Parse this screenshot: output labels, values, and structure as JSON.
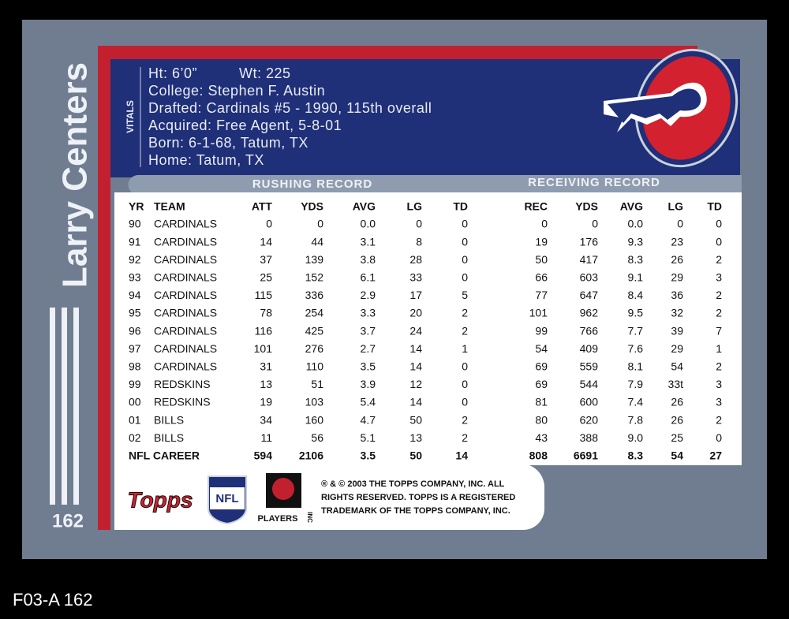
{
  "card": {
    "name": "Larry Centers",
    "number": "162",
    "vitals": {
      "label": "VITALS",
      "height": "Ht: 6’0”",
      "weight": "Wt: 225",
      "lines": [
        "College: Stephen F. Austin",
        "Drafted: Cardinals #5 - 1990, 115th overall",
        "Acquired: Free Agent, 5-8-01",
        "Born: 6-1-68, Tatum, TX",
        "Home: Tatum, TX"
      ]
    },
    "stats": {
      "rushing_title": "RUSHING RECORD",
      "receiving_title": "RECEIVING RECORD",
      "columns": [
        "YR",
        "TEAM",
        "ATT",
        "YDS",
        "AVG",
        "LG",
        "TD",
        "REC",
        "YDS",
        "AVG",
        "LG",
        "TD"
      ],
      "rows": [
        [
          "90",
          "CARDINALS",
          "0",
          "0",
          "0.0",
          "0",
          "0",
          "0",
          "0",
          "0.0",
          "0",
          "0"
        ],
        [
          "91",
          "CARDINALS",
          "14",
          "44",
          "3.1",
          "8",
          "0",
          "19",
          "176",
          "9.3",
          "23",
          "0"
        ],
        [
          "92",
          "CARDINALS",
          "37",
          "139",
          "3.8",
          "28",
          "0",
          "50",
          "417",
          "8.3",
          "26",
          "2"
        ],
        [
          "93",
          "CARDINALS",
          "25",
          "152",
          "6.1",
          "33",
          "0",
          "66",
          "603",
          "9.1",
          "29",
          "3"
        ],
        [
          "94",
          "CARDINALS",
          "115",
          "336",
          "2.9",
          "17",
          "5",
          "77",
          "647",
          "8.4",
          "36",
          "2"
        ],
        [
          "95",
          "CARDINALS",
          "78",
          "254",
          "3.3",
          "20",
          "2",
          "101",
          "962",
          "9.5",
          "32",
          "2"
        ],
        [
          "96",
          "CARDINALS",
          "116",
          "425",
          "3.7",
          "24",
          "2",
          "99",
          "766",
          "7.7",
          "39",
          "7"
        ],
        [
          "97",
          "CARDINALS",
          "101",
          "276",
          "2.7",
          "14",
          "1",
          "54",
          "409",
          "7.6",
          "29",
          "1"
        ],
        [
          "98",
          "CARDINALS",
          "31",
          "110",
          "3.5",
          "14",
          "0",
          "69",
          "559",
          "8.1",
          "54",
          "2"
        ],
        [
          "99",
          "REDSKINS",
          "13",
          "51",
          "3.9",
          "12",
          "0",
          "69",
          "544",
          "7.9",
          "33t",
          "3"
        ],
        [
          "00",
          "REDSKINS",
          "19",
          "103",
          "5.4",
          "14",
          "0",
          "81",
          "600",
          "7.4",
          "26",
          "3"
        ],
        [
          "01",
          "BILLS",
          "34",
          "160",
          "4.7",
          "50",
          "2",
          "80",
          "620",
          "7.8",
          "26",
          "2"
        ],
        [
          "02",
          "BILLS",
          "11",
          "56",
          "5.1",
          "13",
          "2",
          "43",
          "388",
          "9.0",
          "25",
          "0"
        ]
      ],
      "career": {
        "label": "NFL CAREER",
        "values": [
          "594",
          "2106",
          "3.5",
          "50",
          "14",
          "808",
          "6691",
          "8.3",
          "54",
          "27"
        ]
      }
    },
    "footer": {
      "legal": [
        "® & © 2003 THE TOPPS COMPANY, INC. ALL",
        "RIGHTS RESERVED. TOPPS IS A REGISTERED",
        "TRADEMARK OF THE TOPPS COMPANY, INC."
      ],
      "topps_logo": "Topps",
      "nfl_logo": "NFL",
      "players_logo": "PLAYERS",
      "players_inc": "INC"
    },
    "caption": "F03-A 162"
  }
}
